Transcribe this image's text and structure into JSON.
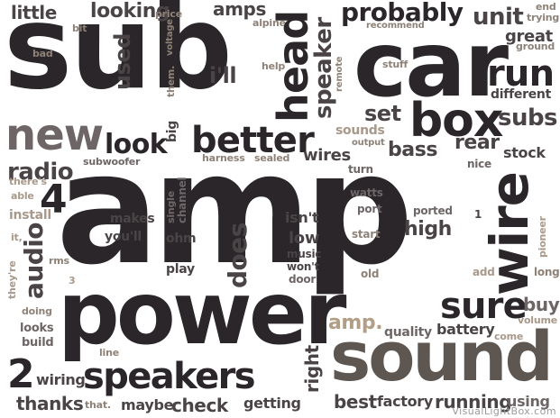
{
  "words": {
    "sub": "sub",
    "car": "car",
    "amp": "amp",
    "power": "power",
    "sound": "sound",
    "speakers": "speakers",
    "wire": "wire",
    "head": "head",
    "box": "box",
    "new": "new",
    "better": "better",
    "look": "look",
    "radio": "radio",
    "audio": "audio",
    "four": "4",
    "two": "2",
    "probably": "probably",
    "unit": "unit",
    "run": "run",
    "subs": "subs",
    "set": "set",
    "speaker": "speaker",
    "sure": "sure",
    "used": "used",
    "looking": "looking",
    "little": "little",
    "amps": "amps",
    "ill": "i'll",
    "does": "does",
    "high": "high",
    "bass": "bass",
    "rear": "rear",
    "stock": "stock",
    "great": "great",
    "different": "different",
    "wires": "wires",
    "low": "low",
    "isnt": "isn't",
    "makes": "makes",
    "youll": "you'll",
    "ohm": "ohm",
    "play": "play",
    "right": "right",
    "check": "check",
    "getting": "getting",
    "maybe": "maybe",
    "thanks": "thanks",
    "wiring": "wiring",
    "best": "best",
    "factory": "factory",
    "running": "running",
    "using": "using",
    "battery": "battery",
    "quality": "quality",
    "amp_dot": "amp.",
    "buy": "buy",
    "volume": "volume",
    "come": "come",
    "long": "long",
    "add": "add",
    "pioneer": "pioneer",
    "old": "old",
    "start": "start",
    "ported": "ported",
    "port": "port",
    "watts": "watts",
    "turn": "turn",
    "nice": "nice",
    "output": "output",
    "sounds": "sounds",
    "stuff": "stuff",
    "remote": "remote",
    "help": "help",
    "alpine": "alpine",
    "recommend": "recommend",
    "trying": "trying",
    "end": "end",
    "ground": "ground",
    "price": "price",
    "bit": "bit",
    "bad": "bad",
    "them": "them.",
    "voltage": "voltage",
    "big": "big",
    "channel": "channel",
    "single": "single",
    "harness": "harness",
    "sealed": "sealed",
    "subwoofer": "subwoofer",
    "theres": "there's",
    "able": "able",
    "install": "install",
    "its": "it,",
    "rms": "rms",
    "theyre": "they're",
    "three": "3",
    "doing": "doing",
    "looks": "looks",
    "build": "build",
    "line": "line",
    "that": "that.",
    "music": "music",
    "wont": "won't",
    "door": "door",
    "one": "1"
  },
  "watermark": "VisualLightBox.com"
}
